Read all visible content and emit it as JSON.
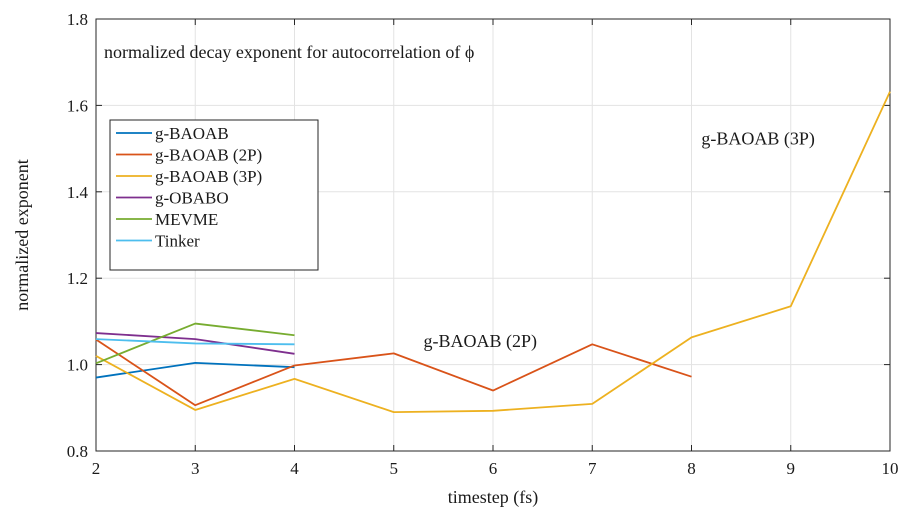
{
  "chart_data": {
    "type": "line",
    "title": "normalized decay exponent for autocorrelation of ϕ",
    "xlabel": "timestep (fs)",
    "ylabel": "normalized exponent",
    "xlim": [
      2,
      10
    ],
    "ylim": [
      0.8,
      1.8
    ],
    "xticks": [
      2,
      3,
      4,
      5,
      6,
      7,
      8,
      9,
      10
    ],
    "yticks": [
      0.8,
      1.0,
      1.2,
      1.4,
      1.6,
      1.8
    ],
    "xtick_labels": [
      "2",
      "3",
      "4",
      "5",
      "6",
      "7",
      "8",
      "9",
      "10"
    ],
    "ytick_labels": [
      "0.8",
      "1.0",
      "1.2",
      "1.4",
      "1.6",
      "1.8"
    ],
    "grid": true,
    "legend_position": "upper-left",
    "series": [
      {
        "name": "g-BAOAB",
        "color": "#0072BD",
        "x": [
          2,
          3,
          4
        ],
        "y": [
          0.97,
          1.004,
          0.994
        ]
      },
      {
        "name": "g-BAOAB (2P)",
        "color": "#D95319",
        "x": [
          2,
          3,
          4,
          5,
          6,
          7,
          8
        ],
        "y": [
          1.058,
          0.906,
          0.998,
          1.026,
          0.94,
          1.047,
          0.972
        ]
      },
      {
        "name": "g-BAOAB (3P)",
        "color": "#EDB120",
        "x": [
          2,
          3,
          4,
          5,
          6,
          7,
          8,
          9,
          10
        ],
        "y": [
          1.02,
          0.895,
          0.967,
          0.89,
          0.893,
          0.909,
          1.063,
          1.135,
          1.632
        ]
      },
      {
        "name": "g-OBABO",
        "color": "#7E2F8E",
        "x": [
          2,
          3,
          4
        ],
        "y": [
          1.073,
          1.059,
          1.025
        ]
      },
      {
        "name": "MEVME",
        "color": "#77AC30",
        "x": [
          2,
          3,
          4
        ],
        "y": [
          1.003,
          1.095,
          1.068
        ]
      },
      {
        "name": "Tinker",
        "color": "#4DBEEE",
        "x": [
          2,
          3,
          4
        ],
        "y": [
          1.059,
          1.049,
          1.047
        ]
      }
    ],
    "annotations": [
      {
        "text": "g-BAOAB (2P)",
        "x": 5.3,
        "y": 1.041
      },
      {
        "text": "g-BAOAB (3P)",
        "x": 8.1,
        "y": 1.51
      }
    ]
  }
}
